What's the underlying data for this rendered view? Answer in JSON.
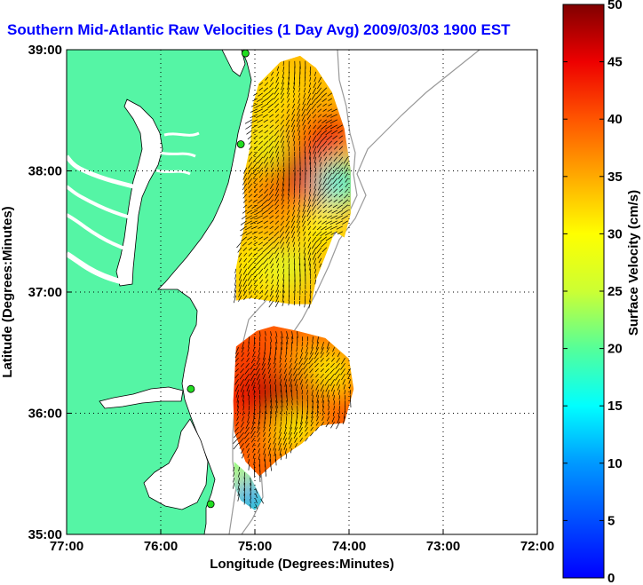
{
  "chart_data": {
    "type": "heatmap",
    "title": "Southern Mid-Atlantic Raw Velocities (1 Day Avg) 2009/03/03 1900 EST",
    "xlabel": "Longitude (Degrees:Minutes)",
    "ylabel": "Latitude (Degrees:Minutes)",
    "colorbar_label": "Surface Velocity (cm/s)",
    "x_range": [
      -77,
      -72
    ],
    "y_range": [
      35,
      39
    ],
    "c_range": [
      0,
      50
    ],
    "x_ticks": [
      {
        "value": -77,
        "label": "77:00"
      },
      {
        "value": -76,
        "label": "76:00"
      },
      {
        "value": -75,
        "label": "75:00"
      },
      {
        "value": -74,
        "label": "74:00"
      },
      {
        "value": -73,
        "label": "73:00"
      },
      {
        "value": -72,
        "label": "72:00"
      }
    ],
    "y_ticks": [
      {
        "value": 39,
        "label": "39:00"
      },
      {
        "value": 38,
        "label": "38:00"
      },
      {
        "value": 37,
        "label": "37:00"
      },
      {
        "value": 36,
        "label": "36:00"
      },
      {
        "value": 35,
        "label": "35:00"
      }
    ],
    "c_ticks": [
      0,
      5,
      10,
      15,
      20,
      25,
      30,
      35,
      40,
      45,
      50
    ],
    "grid": "dotted",
    "colormap": "jet",
    "colors": {
      "land": "#55f5a5",
      "title": "#0000ff",
      "bathymetry": "#999999",
      "station": "#22dd22",
      "vector": "#000000"
    },
    "stations": [
      {
        "lon": -75.1,
        "lat": 38.97
      },
      {
        "lon": -75.15,
        "lat": 38.22
      },
      {
        "lon": -75.68,
        "lat": 36.2
      },
      {
        "lon": -75.47,
        "lat": 35.25
      }
    ],
    "regions": [
      {
        "name": "north",
        "polygon": [
          [
            -74.96,
            38.72
          ],
          [
            -74.73,
            38.9
          ],
          [
            -74.52,
            38.95
          ],
          [
            -74.35,
            38.85
          ],
          [
            -74.18,
            38.65
          ],
          [
            -74.05,
            38.35
          ],
          [
            -73.98,
            38.0
          ],
          [
            -73.98,
            37.65
          ],
          [
            -74.05,
            37.45
          ],
          [
            -74.15,
            37.5
          ],
          [
            -74.25,
            37.3
          ],
          [
            -74.35,
            37.1
          ],
          [
            -74.4,
            36.9
          ],
          [
            -74.6,
            36.9
          ],
          [
            -75.05,
            36.95
          ],
          [
            -75.2,
            36.93
          ],
          [
            -75.2,
            37.2
          ],
          [
            -75.1,
            37.6
          ],
          [
            -75.12,
            37.95
          ],
          [
            -75.05,
            38.2
          ],
          [
            -75.02,
            38.55
          ]
        ],
        "samples": [
          {
            "lon": -74.75,
            "lat": 38.6,
            "v": 30
          },
          {
            "lon": -74.55,
            "lat": 38.45,
            "v": 35
          },
          {
            "lon": -74.85,
            "lat": 38.2,
            "v": 28
          },
          {
            "lon": -74.45,
            "lat": 38.2,
            "v": 40
          },
          {
            "lon": -74.2,
            "lat": 38.3,
            "v": 45
          },
          {
            "lon": -74.6,
            "lat": 37.95,
            "v": 48
          },
          {
            "lon": -74.85,
            "lat": 37.8,
            "v": 38
          },
          {
            "lon": -74.35,
            "lat": 37.8,
            "v": 42
          },
          {
            "lon": -74.1,
            "lat": 37.9,
            "v": 15
          },
          {
            "lon": -75.05,
            "lat": 37.55,
            "v": 34
          },
          {
            "lon": -74.65,
            "lat": 37.55,
            "v": 36
          },
          {
            "lon": -74.3,
            "lat": 37.55,
            "v": 30
          },
          {
            "lon": -75.0,
            "lat": 37.2,
            "v": 30
          },
          {
            "lon": -74.65,
            "lat": 37.2,
            "v": 26
          },
          {
            "lon": -74.9,
            "lat": 37.0,
            "v": 32
          }
        ]
      },
      {
        "name": "south",
        "polygon": [
          [
            -75.2,
            36.55
          ],
          [
            -74.98,
            36.68
          ],
          [
            -74.8,
            36.72
          ],
          [
            -74.55,
            36.68
          ],
          [
            -74.25,
            36.62
          ],
          [
            -74.0,
            36.45
          ],
          [
            -73.95,
            36.2
          ],
          [
            -74.05,
            35.92
          ],
          [
            -74.3,
            35.9
          ],
          [
            -74.5,
            35.75
          ],
          [
            -74.75,
            35.62
          ],
          [
            -74.95,
            35.48
          ],
          [
            -75.1,
            35.6
          ],
          [
            -75.22,
            35.85
          ],
          [
            -75.23,
            36.1
          ]
        ],
        "samples": [
          {
            "lon": -75.05,
            "lat": 36.45,
            "v": 42
          },
          {
            "lon": -74.75,
            "lat": 36.55,
            "v": 40
          },
          {
            "lon": -74.45,
            "lat": 36.45,
            "v": 35
          },
          {
            "lon": -74.15,
            "lat": 36.35,
            "v": 30
          },
          {
            "lon": -75.1,
            "lat": 36.1,
            "v": 45
          },
          {
            "lon": -74.8,
            "lat": 36.15,
            "v": 48
          },
          {
            "lon": -74.45,
            "lat": 36.1,
            "v": 46
          },
          {
            "lon": -74.15,
            "lat": 36.0,
            "v": 40
          },
          {
            "lon": -75.05,
            "lat": 35.8,
            "v": 40
          },
          {
            "lon": -74.8,
            "lat": 35.75,
            "v": 38
          },
          {
            "lon": -74.55,
            "lat": 35.85,
            "v": 30
          }
        ]
      },
      {
        "name": "hatteras",
        "polygon": [
          [
            -75.22,
            35.6
          ],
          [
            -75.05,
            35.48
          ],
          [
            -74.92,
            35.28
          ],
          [
            -75.0,
            35.2
          ],
          [
            -75.15,
            35.28
          ],
          [
            -75.22,
            35.4
          ]
        ],
        "samples": [
          {
            "lon": -75.15,
            "lat": 35.45,
            "v": 30
          },
          {
            "lon": -75.05,
            "lat": 35.3,
            "v": 10
          }
        ]
      }
    ]
  }
}
